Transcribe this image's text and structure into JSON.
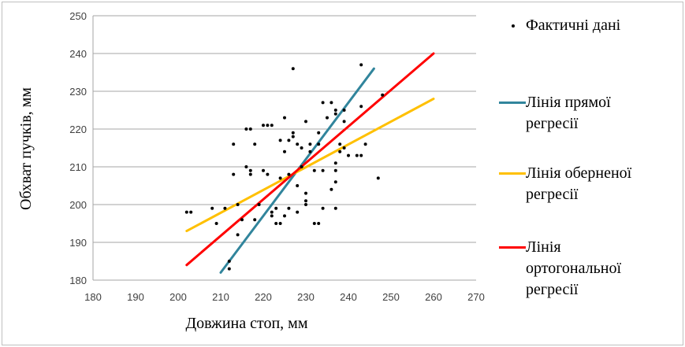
{
  "chart_data": {
    "type": "scatter",
    "title": "",
    "xlabel": "Довжина стоп, мм",
    "ylabel": "Обхват пучків, мм",
    "xlim": [
      180,
      270
    ],
    "ylim": [
      180,
      250
    ],
    "xticks": [
      180,
      190,
      200,
      210,
      220,
      230,
      240,
      250,
      260,
      270
    ],
    "yticks": [
      180,
      190,
      200,
      210,
      220,
      230,
      240,
      250
    ],
    "grid": "horizontal",
    "legend_position": "right",
    "series": [
      {
        "name": "Фактичні дані",
        "kind": "points",
        "color": "#000000",
        "points": [
          [
            202,
            198
          ],
          [
            203,
            198
          ],
          [
            208,
            199
          ],
          [
            209,
            195
          ],
          [
            211,
            199
          ],
          [
            212,
            185
          ],
          [
            212,
            183
          ],
          [
            213,
            216
          ],
          [
            213,
            208
          ],
          [
            214,
            200
          ],
          [
            214,
            192
          ],
          [
            215,
            196
          ],
          [
            216,
            220
          ],
          [
            216,
            210
          ],
          [
            217,
            220
          ],
          [
            217,
            209
          ],
          [
            217,
            208
          ],
          [
            218,
            216
          ],
          [
            218,
            196
          ],
          [
            219,
            200
          ],
          [
            220,
            221
          ],
          [
            220,
            209
          ],
          [
            221,
            221
          ],
          [
            221,
            208
          ],
          [
            222,
            221
          ],
          [
            222,
            197
          ],
          [
            222,
            198
          ],
          [
            223,
            195
          ],
          [
            223,
            199
          ],
          [
            224,
            217
          ],
          [
            224,
            207
          ],
          [
            224,
            195
          ],
          [
            225,
            223
          ],
          [
            225,
            214
          ],
          [
            225,
            197
          ],
          [
            226,
            217
          ],
          [
            226,
            208
          ],
          [
            226,
            199
          ],
          [
            227,
            236
          ],
          [
            227,
            219
          ],
          [
            227,
            218
          ],
          [
            228,
            216
          ],
          [
            228,
            205
          ],
          [
            228,
            198
          ],
          [
            229,
            215
          ],
          [
            229,
            210
          ],
          [
            230,
            201
          ],
          [
            230,
            200
          ],
          [
            230,
            203
          ],
          [
            230,
            222
          ],
          [
            231,
            216
          ],
          [
            231,
            214
          ],
          [
            232,
            209
          ],
          [
            232,
            195
          ],
          [
            233,
            195
          ],
          [
            233,
            216
          ],
          [
            233,
            219
          ],
          [
            234,
            227
          ],
          [
            234,
            209
          ],
          [
            234,
            199
          ],
          [
            235,
            223
          ],
          [
            236,
            227
          ],
          [
            236,
            204
          ],
          [
            237,
            225
          ],
          [
            237,
            224
          ],
          [
            237,
            211
          ],
          [
            237,
            209
          ],
          [
            237,
            206
          ],
          [
            237,
            199
          ],
          [
            238,
            216
          ],
          [
            238,
            214
          ],
          [
            239,
            225
          ],
          [
            239,
            222
          ],
          [
            239,
            215
          ],
          [
            240,
            213
          ],
          [
            242,
            213
          ],
          [
            243,
            213
          ],
          [
            243,
            226
          ],
          [
            244,
            216
          ],
          [
            243,
            237
          ],
          [
            247,
            207
          ],
          [
            248,
            229
          ]
        ]
      },
      {
        "name": "Лінія прямої регресії",
        "kind": "line",
        "color": "#31859c",
        "x": [
          210,
          246
        ],
        "y": [
          182,
          236
        ]
      },
      {
        "name": "Лінія оберненої регресії",
        "kind": "line",
        "color": "#ffc000",
        "x": [
          202,
          260
        ],
        "y": [
          193,
          228
        ]
      },
      {
        "name": "Лінія ортогональної регресії",
        "kind": "line",
        "color": "#ff0000",
        "x": [
          202,
          260
        ],
        "y": [
          184,
          240
        ]
      }
    ]
  },
  "legend": {
    "points_label": "Фактичні дані",
    "direct_label": "Лінія прямої\nрегресії",
    "inverse_label": "Лінія оберненої\nрегресії",
    "orthogonal_label": "Лінія\nортогональної\nрегресії"
  }
}
